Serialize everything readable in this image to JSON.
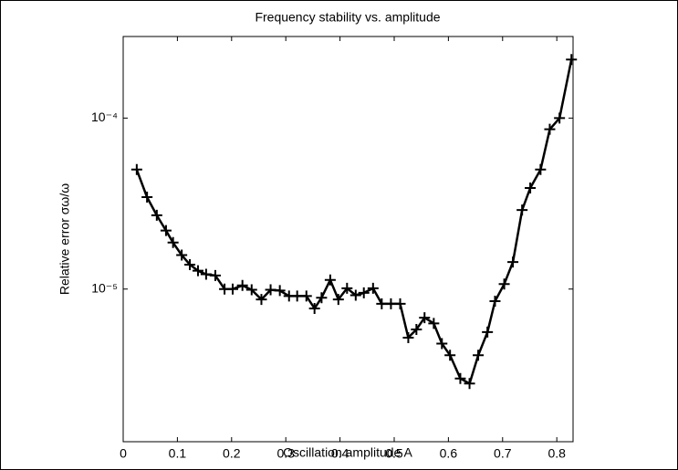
{
  "chart_data": {
    "type": "line",
    "title": "Frequency stability vs. amplitude",
    "xlabel": "Oscillation amplitude A",
    "ylabel": "Relative error σω/ω",
    "log_y": true,
    "color": "#000000",
    "marker": "+",
    "xlim": [
      0,
      0.83
    ],
    "ylim": [
      1.28e-06,
      0.0003
    ],
    "xticks": [
      0,
      0.1,
      0.2,
      0.3,
      0.4,
      0.5,
      0.6,
      0.7,
      0.8
    ],
    "yticks": [
      {
        "value": 1e-05,
        "label": "10⁻⁵"
      },
      {
        "value": 0.0001,
        "label": "10⁻⁴"
      }
    ],
    "x": [
      0.025,
      0.044,
      0.062,
      0.079,
      0.092,
      0.108,
      0.123,
      0.138,
      0.153,
      0.17,
      0.187,
      0.202,
      0.22,
      0.237,
      0.255,
      0.272,
      0.289,
      0.306,
      0.321,
      0.338,
      0.353,
      0.366,
      0.382,
      0.397,
      0.413,
      0.429,
      0.444,
      0.461,
      0.477,
      0.494,
      0.511,
      0.526,
      0.541,
      0.556,
      0.573,
      0.588,
      0.603,
      0.622,
      0.639,
      0.655,
      0.672,
      0.686,
      0.703,
      0.719,
      0.736,
      0.751,
      0.77,
      0.787,
      0.805,
      0.827
    ],
    "values": [
      5e-05,
      3.45e-05,
      2.7e-05,
      2.2e-05,
      1.87e-05,
      1.58e-05,
      1.39e-05,
      1.28e-05,
      1.22e-05,
      1.2e-05,
      1e-05,
      1e-05,
      1.05e-05,
      9.9e-06,
      8.7e-06,
      9.9e-06,
      9.8e-06,
      9.1e-06,
      9.1e-06,
      9.1e-06,
      7.7e-06,
      8.9e-06,
      1.13e-05,
      8.7e-06,
      1.01e-05,
      9.2e-06,
      9.5e-06,
      1.01e-05,
      8.2e-06,
      8.2e-06,
      8.2e-06,
      5.2e-06,
      5.8e-06,
      6.8e-06,
      6.3e-06,
      4.8e-06,
      4.1e-06,
      3e-06,
      2.8e-06,
      4.1e-06,
      5.6e-06,
      8.5e-06,
      1.07e-05,
      1.44e-05,
      2.9e-05,
      3.9e-05,
      5e-05,
      8.6e-05,
      0.0001,
      0.00022
    ]
  }
}
